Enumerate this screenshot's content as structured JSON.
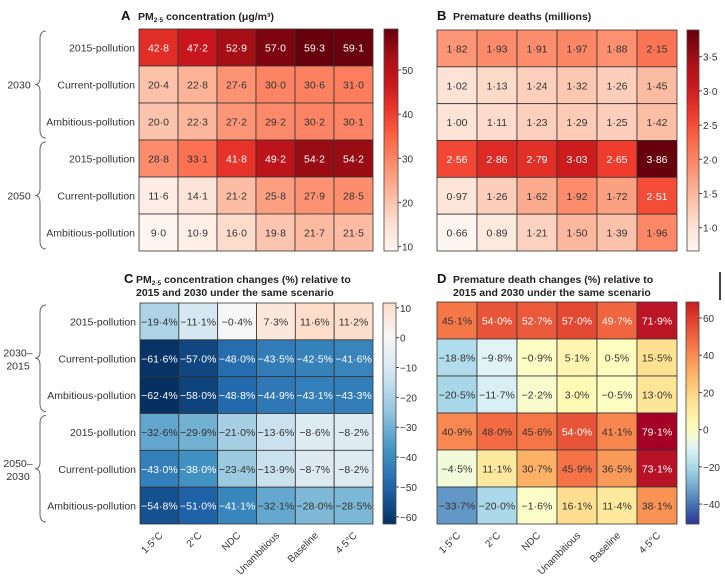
{
  "row_labels": [
    "2015-pollution",
    "Current-pollution",
    "Ambitious-pollution",
    "2015-pollution",
    "Current-pollution",
    "Ambitious-pollution"
  ],
  "column_labels": [
    "1·5°C",
    "2°C",
    "NDC",
    "Unambitious",
    "Baseline",
    "4·5°C"
  ],
  "chart_data": [
    {
      "panel": "A",
      "type": "heatmap",
      "title_pre": "PM",
      "title_sub": "2·5",
      "title_post": " concentration (μg/m³)",
      "groups": [
        "2030",
        "2050"
      ],
      "colormap": "Reds",
      "vmin": 9.0,
      "vmax": 59.3,
      "colorbar_ticks": [
        10,
        20,
        30,
        40,
        50
      ],
      "tick_labels": [
        "10",
        "20",
        "30",
        "40",
        "50"
      ],
      "decimals": 1,
      "percent": false,
      "values": [
        [
          42.8,
          47.2,
          52.9,
          57.0,
          59.3,
          59.1
        ],
        [
          20.4,
          22.8,
          27.6,
          30.0,
          30.6,
          31.0
        ],
        [
          20.0,
          22.3,
          27.2,
          29.2,
          30.2,
          30.1
        ],
        [
          28.8,
          33.1,
          41.8,
          49.2,
          54.2,
          54.2
        ],
        [
          11.6,
          14.1,
          21.2,
          25.8,
          27.9,
          28.5
        ],
        [
          9.0,
          10.9,
          16.0,
          19.8,
          21.7,
          21.5
        ]
      ]
    },
    {
      "panel": "B",
      "type": "heatmap",
      "title": "Premature deaths (millions)",
      "colormap": "Reds",
      "vmin": 0.66,
      "vmax": 3.86,
      "colorbar_ticks": [
        1.0,
        1.5,
        2.0,
        2.5,
        3.0,
        3.5
      ],
      "tick_labels": [
        "1·0",
        "1·5",
        "2·0",
        "2·5",
        "3·0",
        "3·5"
      ],
      "decimals": 2,
      "percent": false,
      "values": [
        [
          1.82,
          1.93,
          1.91,
          1.97,
          1.88,
          2.15
        ],
        [
          1.02,
          1.13,
          1.24,
          1.32,
          1.26,
          1.45
        ],
        [
          1.0,
          1.11,
          1.23,
          1.29,
          1.25,
          1.42
        ],
        [
          2.56,
          2.86,
          2.79,
          3.03,
          2.65,
          3.86
        ],
        [
          0.97,
          1.26,
          1.62,
          1.92,
          1.72,
          2.51
        ],
        [
          0.66,
          0.89,
          1.21,
          1.5,
          1.39,
          1.96
        ]
      ]
    },
    {
      "panel": "C",
      "type": "heatmap",
      "title_pre": "PM",
      "title_sub": "2·5",
      "title_post": " concentration changes (%) relative to",
      "title_line2": "2015 and 2030 under the same scenario",
      "groups": [
        [
          "2030–",
          "2015"
        ],
        [
          "2050–",
          "2030"
        ]
      ],
      "colormap": "RdBu_r",
      "vmin": -62.4,
      "vmax": 11.6,
      "colorbar_ticks": [
        10,
        0,
        -10,
        -20,
        -30,
        -40,
        -50,
        -60
      ],
      "tick_labels": [
        "10",
        "0",
        "−10",
        "−20",
        "−30",
        "−40",
        "−50",
        "−60"
      ],
      "decimals": 1,
      "percent": true,
      "values": [
        [
          -19.4,
          -11.1,
          -0.4,
          7.3,
          11.6,
          11.2
        ],
        [
          -61.6,
          -57.0,
          -48.0,
          -43.5,
          -42.5,
          -41.6
        ],
        [
          -62.4,
          -58.0,
          -48.8,
          -44.9,
          -43.1,
          -43.3
        ],
        [
          -32.6,
          -29.9,
          -21.0,
          -13.6,
          -8.6,
          -8.2
        ],
        [
          -43.0,
          -38.0,
          -23.4,
          -13.9,
          -8.7,
          -8.2
        ],
        [
          -54.8,
          -51.0,
          -41.1,
          -32.1,
          -28.0,
          -28.5
        ]
      ]
    },
    {
      "panel": "D",
      "type": "heatmap",
      "title": "Premature death changes (%) relative to",
      "title_line2": "2015 and 2030 under the same scenario",
      "colormap": "RdYlBu_r",
      "vmin": -50,
      "vmax": 79.1,
      "colorbar_ticks": [
        60,
        40,
        20,
        0,
        -20,
        -40
      ],
      "tick_labels": [
        "60",
        "40",
        "20",
        "0",
        "−20",
        "−40"
      ],
      "decimals": 1,
      "percent": true,
      "values": [
        [
          45.1,
          54.0,
          52.7,
          57.0,
          49.7,
          71.9
        ],
        [
          -18.8,
          -9.8,
          -0.9,
          5.1,
          0.5,
          15.5
        ],
        [
          -20.5,
          -11.7,
          -2.2,
          3.0,
          -0.5,
          13.0
        ],
        [
          40.9,
          48.0,
          45.6,
          54.0,
          41.1,
          79.1
        ],
        [
          -4.5,
          11.1,
          30.7,
          45.9,
          36.5,
          73.1
        ],
        [
          -33.7,
          -20.0,
          -1.6,
          16.1,
          11.4,
          38.1
        ]
      ]
    }
  ]
}
